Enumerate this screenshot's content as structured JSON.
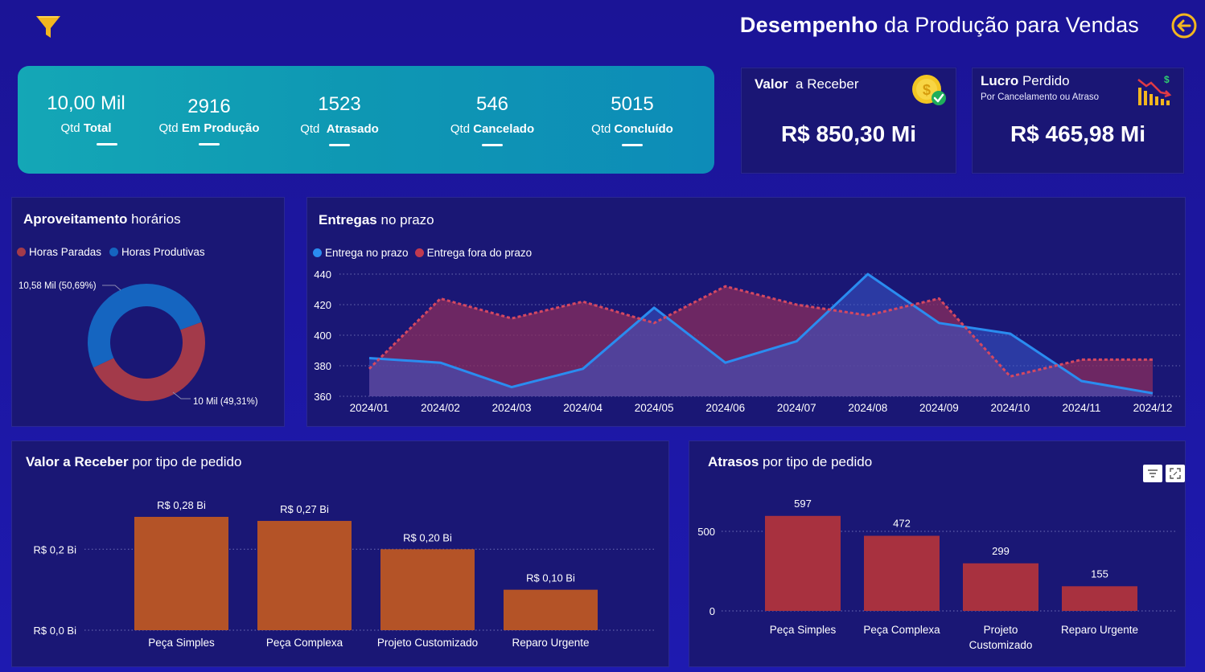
{
  "header": {
    "title_bold": "Desempenho",
    "title_rest": "da Produção para Vendas",
    "filter_icon": "funnel-icon",
    "back_icon": "arrow-left-circle-icon"
  },
  "kpis": [
    {
      "value": "10,00 Mil",
      "label_light": "Qtd",
      "label_bold": "Total"
    },
    {
      "value": "2916",
      "label_light": "Qtd",
      "label_bold": "Em Produção"
    },
    {
      "value": "1523",
      "label_light": "Qtd",
      "label_bold": "Atrasado"
    },
    {
      "value": "546",
      "label_light": "Qtd",
      "label_bold": "Cancelado"
    },
    {
      "value": "5015",
      "label_light": "Qtd",
      "label_bold": "Concluído"
    }
  ],
  "valor_card": {
    "title_bold": "Valor",
    "title_rest": "a Receber",
    "value": "R$ 850,30 Mi",
    "icon": "coin-check-icon"
  },
  "lucro_card": {
    "title_bold": "Lucro",
    "title_rest": "Perdido",
    "subtitle": "Por Cancelamento ou Atraso",
    "value": "R$ 465,98 Mi",
    "icon": "declining-bars-icon"
  },
  "colors": {
    "background": "#1c16a0",
    "kpi_strip": "#0e97b3",
    "blue_series": "#2a8cf0",
    "red_series": "#c0394f",
    "orange_bar": "#b45327",
    "red_bar": "#a8313f",
    "coin": "#f3c623",
    "check": "#1fae5b"
  },
  "chart_data": [
    {
      "type": "pie",
      "title_bold": "Aproveitamento",
      "title_rest": "horários",
      "legend": [
        "Horas Paradas",
        "Horas Produtivas"
      ],
      "slices": [
        {
          "name": "Horas Paradas",
          "value": 10.0,
          "label": "10 Mil (49,31%)",
          "color": "#a33a4a"
        },
        {
          "name": "Horas Produtivas",
          "value": 10.58,
          "label": "10,58 Mil (50,69%)",
          "color": "#1565c0"
        }
      ]
    },
    {
      "type": "area",
      "title_bold": "Entregas",
      "title_rest": "no prazo",
      "categories": [
        "2024/01",
        "2024/02",
        "2024/03",
        "2024/04",
        "2024/05",
        "2024/06",
        "2024/07",
        "2024/08",
        "2024/09",
        "2024/10",
        "2024/11",
        "2024/12"
      ],
      "series": [
        {
          "name": "Entrega no prazo",
          "color": "#2a8cf0",
          "values": [
            385,
            382,
            366,
            378,
            418,
            382,
            396,
            440,
            408,
            401,
            370,
            362
          ]
        },
        {
          "name": "Entrega fora do prazo",
          "color": "#c0394f",
          "values": [
            378,
            424,
            411,
            422,
            408,
            432,
            420,
            413,
            424,
            373,
            384,
            384
          ]
        }
      ],
      "yticks": [
        360,
        380,
        400,
        420,
        440
      ],
      "ylim": [
        360,
        440
      ],
      "grid": true,
      "legend_position": "top-left"
    },
    {
      "type": "bar",
      "title_bold": "Valor a Receber",
      "title_rest": "por tipo de pedido",
      "categories": [
        "Peça Simples",
        "Peça Complexa",
        "Projeto Customizado",
        "Reparo Urgente"
      ],
      "values": [
        0.28,
        0.27,
        0.2,
        0.1
      ],
      "data_labels": [
        "R$ 0,28 Bi",
        "R$ 0,27 Bi",
        "R$ 0,20 Bi",
        "R$ 0,10 Bi"
      ],
      "ytick_values": [
        0.0,
        0.2
      ],
      "yticks": [
        "R$ 0,0 Bi",
        "R$ 0,2 Bi"
      ],
      "ylim": [
        0,
        0.28
      ],
      "grid": true
    },
    {
      "type": "bar",
      "title_bold": "Atrasos",
      "title_rest": "por tipo de pedido",
      "categories": [
        "Peça Simples",
        "Peça Complexa",
        "Projeto Customizado",
        "Reparo Urgente"
      ],
      "category_lines": [
        [
          "Peça Simples"
        ],
        [
          "Peça Complexa"
        ],
        [
          "Projeto",
          "Customizado"
        ],
        [
          "Reparo Urgente"
        ]
      ],
      "values": [
        597,
        472,
        299,
        155
      ],
      "data_labels": [
        "597",
        "472",
        "299",
        "155"
      ],
      "yticks": [
        0,
        500
      ],
      "ylim": [
        0,
        597
      ],
      "grid": true,
      "toolbar_icons": [
        "filter-lines-icon",
        "focus-mode-icon"
      ]
    }
  ]
}
